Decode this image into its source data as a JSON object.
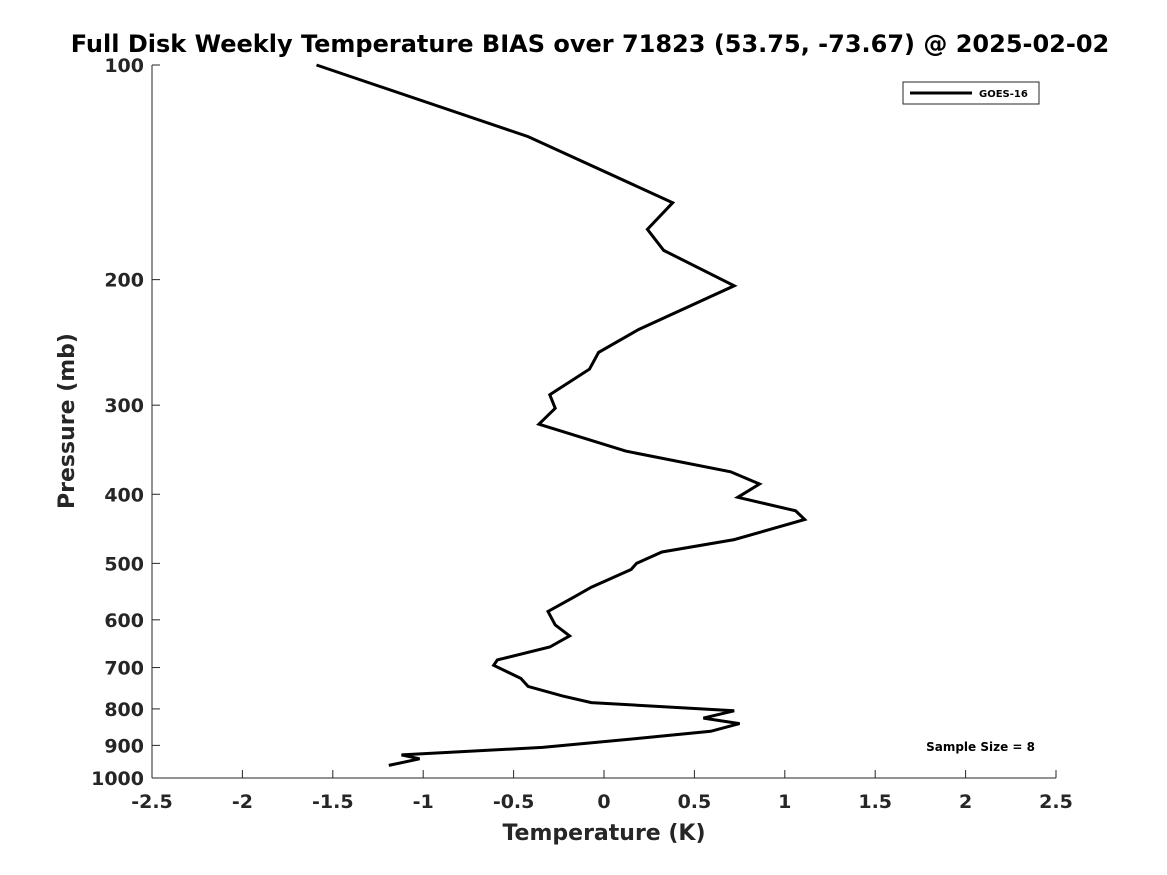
{
  "chart_data": {
    "type": "line",
    "title": "Full Disk Weekly Temperature BIAS over 71823 (53.75, -73.67) @ 2025-02-02",
    "xlabel": "Temperature (K)",
    "ylabel": "Pressure (mb)",
    "xlim": [
      -2.5,
      2.5
    ],
    "ylim": [
      100,
      1000
    ],
    "yscale": "log",
    "yreversed": true,
    "x_ticks": [
      -2.5,
      -2,
      -1.5,
      -1,
      -0.5,
      0,
      0.5,
      1,
      1.5,
      2,
      2.5
    ],
    "x_tick_labels": [
      "-2.5",
      "-2",
      "-1.5",
      "-1",
      "-0.5",
      "0",
      "0.5",
      "1",
      "1.5",
      "2",
      "2.5"
    ],
    "y_ticks": [
      100,
      200,
      300,
      400,
      500,
      600,
      700,
      800,
      900,
      1000
    ],
    "y_tick_labels": [
      "100",
      "200",
      "300",
      "400",
      "500",
      "600",
      "700",
      "800",
      "900",
      "1000"
    ],
    "grid": false,
    "legend_position": "top-right",
    "series": [
      {
        "name": "GOES-16",
        "color": "#000000",
        "x": [
          -1.59,
          -0.42,
          0.38,
          0.24,
          0.33,
          0.72,
          0.19,
          -0.03,
          -0.08,
          -0.3,
          -0.27,
          -0.36,
          0.12,
          0.7,
          0.86,
          0.74,
          1.06,
          1.11,
          0.72,
          0.32,
          0.18,
          0.15,
          -0.07,
          -0.17,
          -0.31,
          -0.27,
          -0.19,
          -0.3,
          -0.59,
          -0.61,
          -0.46,
          -0.42,
          -0.23,
          -0.07,
          0.72,
          0.55,
          0.75,
          0.59,
          0.19,
          -0.34,
          -1.12,
          -1.02,
          -1.19
        ],
        "y": [
          100,
          126,
          156,
          170,
          182,
          204,
          235,
          253,
          267,
          290,
          303,
          319,
          348,
          372,
          387,
          404,
          422,
          434,
          463,
          482,
          500,
          510,
          540,
          558,
          584,
          610,
          632,
          655,
          683,
          695,
          725,
          744,
          767,
          784,
          805,
          824,
          839,
          860,
          880,
          906,
          928,
          940,
          960
        ]
      }
    ],
    "annotations": [
      "Sample Size = 8"
    ]
  }
}
